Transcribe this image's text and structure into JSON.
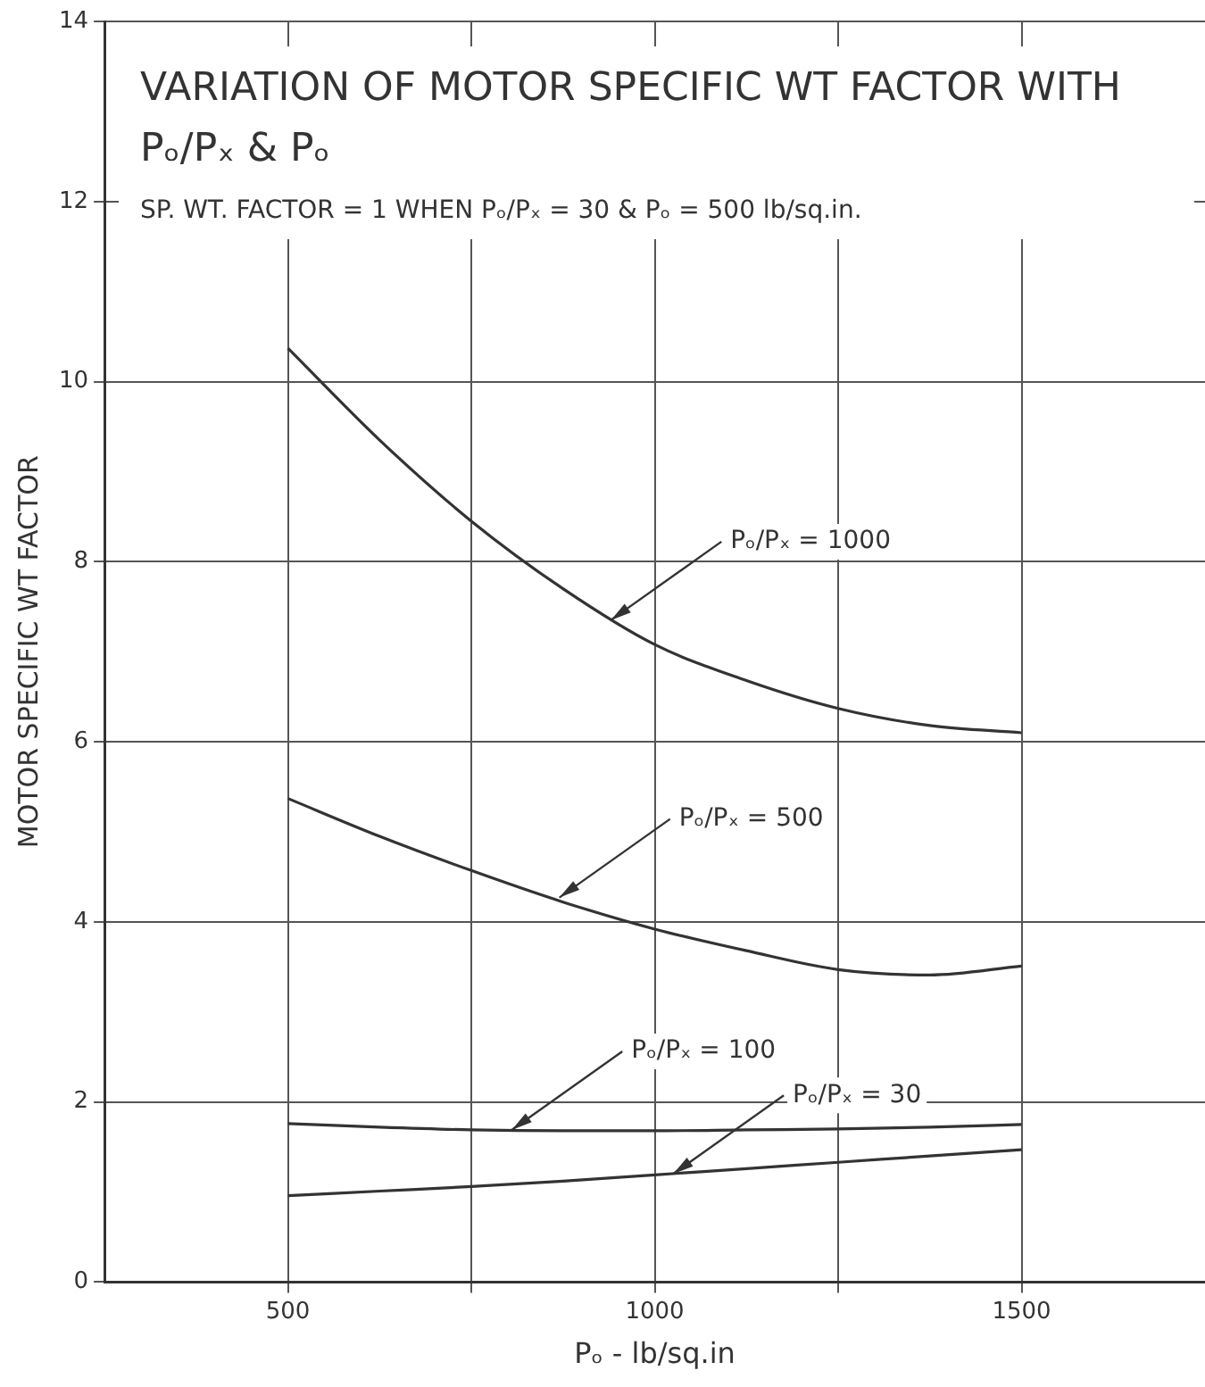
{
  "chart_data": {
    "type": "line",
    "title": "VARIATION OF MOTOR SPECIFIC WT FACTOR WITH Pₒ/Pₓ & Pₒ",
    "subtitle": "SP. WT. FACTOR = 1 WHEN Pₒ/Pₓ = 30 & Pₒ = 500 lb/sq.in.",
    "xlabel": "Pₒ - lb/sq.in",
    "ylabel": "MOTOR SPECIFIC WT FACTOR",
    "x": [
      500,
      625,
      750,
      875,
      1000,
      1125,
      1250,
      1375,
      1500
    ],
    "series": [
      {
        "color": "#333333",
        "values": [
          10.37,
          9.35,
          8.45,
          7.7,
          7.08,
          6.68,
          6.37,
          6.18,
          6.1
        ]
      },
      {
        "color": "#333333",
        "values": [
          5.37,
          4.95,
          4.57,
          4.22,
          3.92,
          3.68,
          3.47,
          3.41,
          3.51
        ]
      },
      {
        "color": "#333333",
        "values": [
          1.76,
          1.72,
          1.69,
          1.68,
          1.68,
          1.69,
          1.7,
          1.72,
          1.75
        ]
      },
      {
        "color": "#333333",
        "values": [
          0.96,
          1.01,
          1.06,
          1.12,
          1.19,
          1.26,
          1.33,
          1.4,
          1.47
        ]
      }
    ],
    "annotations": [
      {
        "text": "Pₒ/Pₓ = 1000",
        "x": 940,
        "y": 7.35
      },
      {
        "text": "Pₒ/Pₓ = 500",
        "x": 870,
        "y": 4.27
      },
      {
        "text": "Pₒ/Pₓ = 100",
        "x": 805,
        "y": 1.69
      },
      {
        "text": "Pₒ/Pₓ = 30",
        "x": 1025,
        "y": 1.2
      }
    ],
    "xlim": [
      250,
      1750
    ],
    "xticks": [
      500,
      {
        "value": 750,
        "label": null
      },
      1000,
      {
        "value": 1250,
        "label": null
      },
      1500
    ],
    "ylim": [
      0,
      14
    ],
    "yticks": [
      0,
      2,
      4,
      6,
      8,
      10,
      12,
      14
    ],
    "grid": true,
    "legend": false,
    "marker": "none",
    "line_style": "solid"
  }
}
